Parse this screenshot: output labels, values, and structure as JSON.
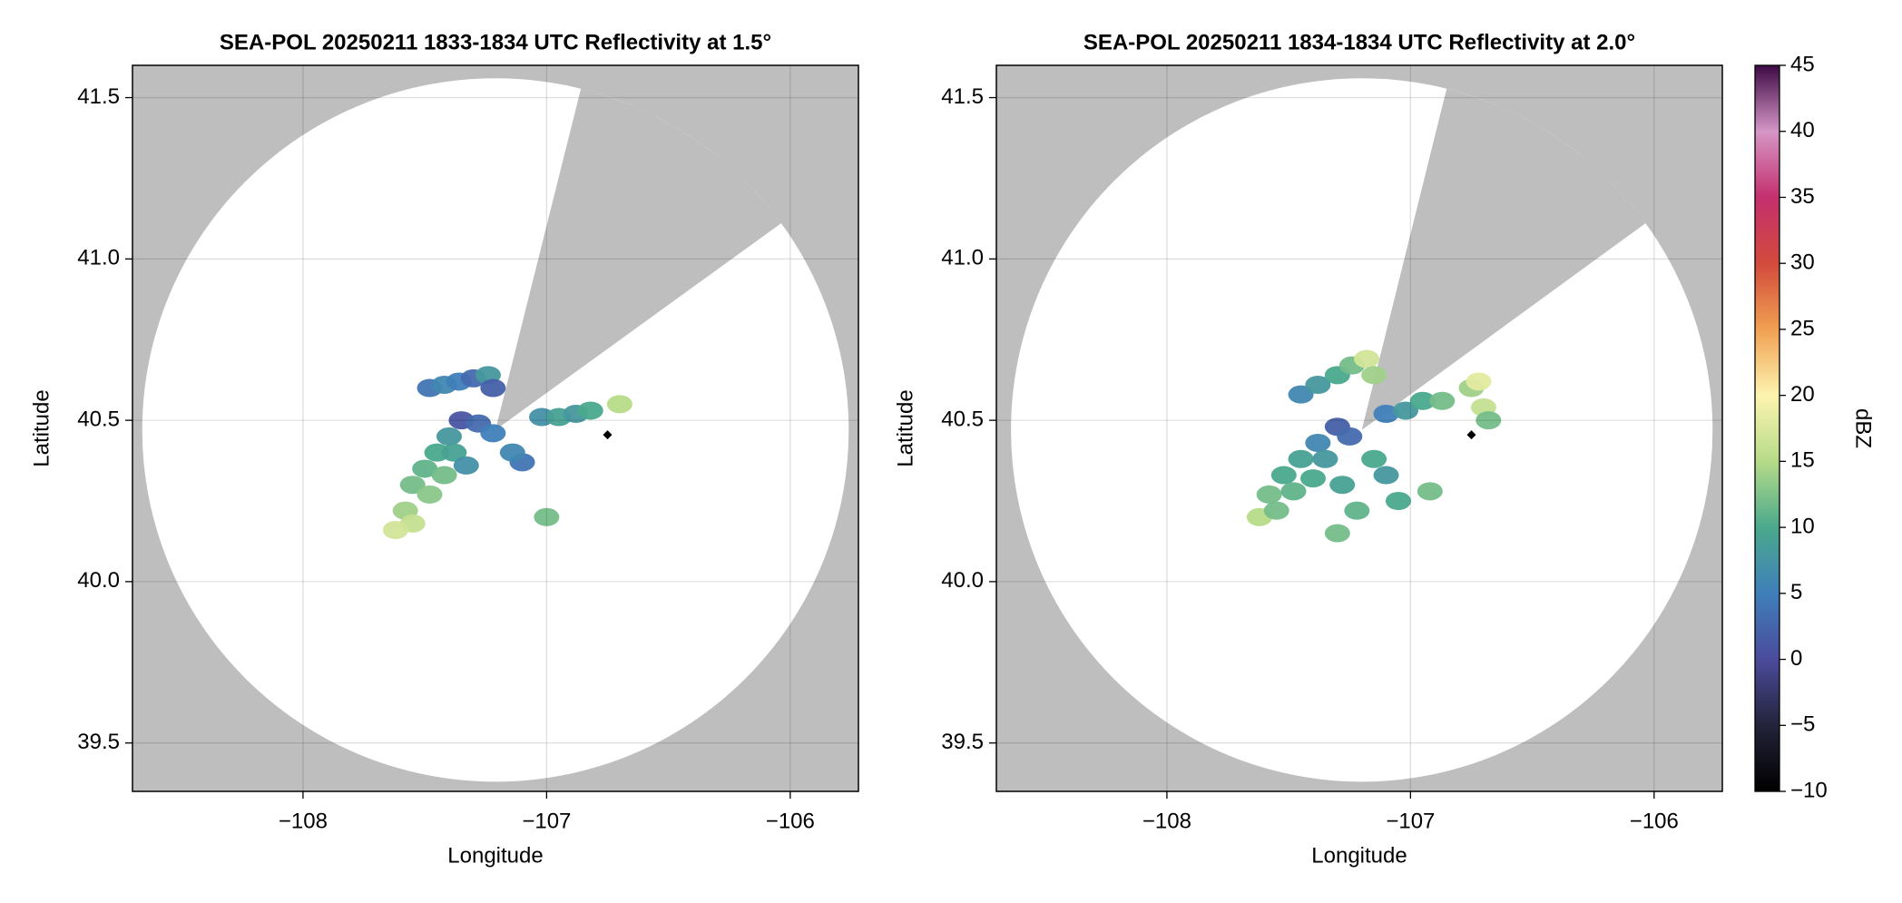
{
  "chart_data": [
    {
      "type": "radar",
      "title": "SEA-POL 20250211 1833-1834 UTC Reflectivity at 1.5°",
      "xlabel": "Longitude",
      "ylabel": "Latitude",
      "xlim": [
        -108.7,
        -105.72
      ],
      "ylim": [
        39.35,
        41.6
      ],
      "xticks": [
        {
          "value": -108,
          "label": "−108"
        },
        {
          "value": -107,
          "label": "−107"
        },
        {
          "value": -106,
          "label": "−106"
        }
      ],
      "yticks": [
        39.5,
        {
          "value": 40,
          "label": "40.0"
        },
        40.5,
        {
          "value": 41,
          "label": "41.0"
        },
        41.5
      ],
      "grid": true,
      "radar_site": {
        "lon": -107.21,
        "lat": 40.47
      },
      "coverage_radius": [
        1.45,
        1.09
      ],
      "blocked_azimuth": [
        14,
        54
      ],
      "marker": {
        "lon": -106.75,
        "lat": 40.455
      },
      "x": [
        -107.48,
        -107.42,
        -107.36,
        -107.3,
        -107.24,
        -107.22,
        -107.35,
        -107.28,
        -107.22,
        -107.4,
        -107.45,
        -107.5,
        -107.55,
        -107.42,
        -107.48,
        -107.58,
        -107.55,
        -107.62,
        -107.38,
        -107.33,
        -107.1,
        -107.14,
        -107.02,
        -106.95,
        -106.88,
        -106.82,
        -106.7,
        -107.0
      ],
      "y": [
        40.6,
        40.61,
        40.62,
        40.63,
        40.64,
        40.6,
        40.5,
        40.49,
        40.46,
        40.45,
        40.4,
        40.35,
        40.3,
        40.33,
        40.27,
        40.22,
        40.18,
        40.16,
        40.4,
        40.36,
        40.37,
        40.4,
        40.51,
        40.51,
        40.52,
        40.53,
        40.55,
        40.2
      ],
      "values": [
        4,
        6,
        5,
        3,
        8,
        2,
        1,
        3,
        5,
        8,
        10,
        11,
        12,
        12,
        13,
        14,
        16,
        17,
        9,
        7,
        4,
        6,
        7,
        9,
        8,
        10,
        15,
        12
      ]
    },
    {
      "type": "radar",
      "title": "SEA-POL 20250211 1834-1834 UTC Reflectivity at 2.0°",
      "xlabel": "Longitude",
      "ylabel": "Latitude",
      "xlim": [
        -108.7,
        -105.72
      ],
      "ylim": [
        39.35,
        41.6
      ],
      "xticks": [
        {
          "value": -108,
          "label": "−108"
        },
        {
          "value": -107,
          "label": "−107"
        },
        {
          "value": -106,
          "label": "−106"
        }
      ],
      "yticks": [
        39.5,
        {
          "value": 40,
          "label": "40.0"
        },
        40.5,
        {
          "value": 41,
          "label": "41.0"
        },
        41.5
      ],
      "grid": true,
      "radar_site": {
        "lon": -107.2,
        "lat": 40.47
      },
      "coverage_radius": [
        1.44,
        1.09
      ],
      "blocked_azimuth": [
        14,
        54
      ],
      "marker": {
        "lon": -106.75,
        "lat": 40.455
      },
      "x": [
        -107.45,
        -107.38,
        -107.3,
        -107.24,
        -107.18,
        -107.15,
        -107.3,
        -107.25,
        -107.38,
        -107.45,
        -107.52,
        -107.58,
        -107.62,
        -107.55,
        -107.48,
        -107.4,
        -107.35,
        -107.28,
        -107.22,
        -107.3,
        -107.15,
        -107.1,
        -107.05,
        -106.92,
        -107.1,
        -107.02,
        -106.95,
        -106.87,
        -106.75,
        -106.7,
        -106.68,
        -106.72
      ],
      "y": [
        40.58,
        40.61,
        40.64,
        40.67,
        40.69,
        40.64,
        40.48,
        40.45,
        40.43,
        40.38,
        40.33,
        40.27,
        40.2,
        40.22,
        40.28,
        40.32,
        40.38,
        40.3,
        40.22,
        40.15,
        40.38,
        40.33,
        40.25,
        40.28,
        40.52,
        40.53,
        40.56,
        40.56,
        40.6,
        40.54,
        40.5,
        40.62
      ],
      "values": [
        6,
        8,
        10,
        12,
        17,
        14,
        2,
        3,
        6,
        9,
        10,
        12,
        15,
        12,
        11,
        10,
        8,
        9,
        11,
        12,
        10,
        8,
        10,
        12,
        5,
        8,
        10,
        12,
        14,
        16,
        12,
        18
      ],
      "colorbar": {
        "label": "dBZ",
        "clim": [
          -10,
          45
        ],
        "ticks": [
          {
            "value": -10,
            "label": "−10"
          },
          {
            "value": -5,
            "label": "−5"
          },
          0,
          5,
          10,
          15,
          20,
          25,
          30,
          35,
          40,
          45
        ],
        "colormap": [
          [
            -10,
            "#000000"
          ],
          [
            -5,
            "#23233a"
          ],
          [
            0,
            "#4b4b9c"
          ],
          [
            5,
            "#3f7fba"
          ],
          [
            10,
            "#4aa98c"
          ],
          [
            15,
            "#b6db88"
          ],
          [
            20,
            "#fdf4b0"
          ],
          [
            25,
            "#f0a052"
          ],
          [
            30,
            "#d24a3c"
          ],
          [
            35,
            "#c4306e"
          ],
          [
            40,
            "#d596c6"
          ],
          [
            45,
            "#3d0a45"
          ]
        ]
      }
    }
  ]
}
